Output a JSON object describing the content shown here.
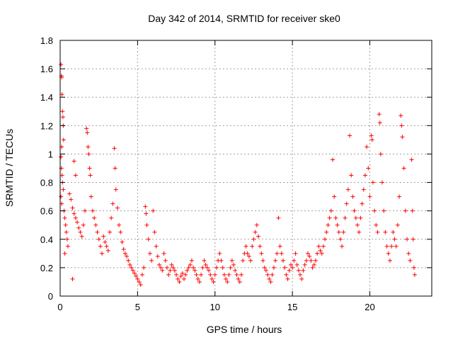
{
  "chart_data": {
    "type": "scatter",
    "title": "Day 342 of 2014, SRMTID for receiver ske0",
    "xlabel": "GPS time / hours",
    "ylabel": "SRMTID / TECUs",
    "xlim": [
      0,
      24
    ],
    "ylim": [
      0,
      1.8
    ],
    "xticks": [
      0,
      5,
      10,
      15,
      20
    ],
    "yticks": [
      0,
      0.2,
      0.4,
      0.6,
      0.8,
      1,
      1.2,
      1.4,
      1.6,
      1.8
    ],
    "xtick_labels": [
      "0",
      "5",
      "10",
      "15",
      "20"
    ],
    "ytick_labels": [
      "0",
      "0.2",
      "0.4",
      "0.6",
      "0.8",
      "1",
      "1.2",
      "1.4",
      "1.6",
      "1.8"
    ],
    "grid": true,
    "marker": "+",
    "color": "#ff0000",
    "series": [
      {
        "name": "SRMTID",
        "points": [
          [
            0.05,
            1.63
          ],
          [
            0.08,
            1.55
          ],
          [
            0.1,
            1.54
          ],
          [
            0.12,
            1.42
          ],
          [
            0.15,
            1.3
          ],
          [
            0.18,
            1.26
          ],
          [
            0.2,
            1.2
          ],
          [
            0.22,
            1.1
          ],
          [
            0.1,
            1.05
          ],
          [
            0.05,
            0.98
          ],
          [
            0.08,
            0.9
          ],
          [
            0.12,
            0.85
          ],
          [
            0.15,
            0.8
          ],
          [
            0.2,
            0.75
          ],
          [
            0.05,
            0.7
          ],
          [
            0.1,
            0.65
          ],
          [
            0.25,
            0.6
          ],
          [
            0.3,
            0.55
          ],
          [
            0.35,
            0.5
          ],
          [
            0.4,
            0.45
          ],
          [
            0.45,
            0.4
          ],
          [
            0.5,
            0.35
          ],
          [
            0.3,
            0.3
          ],
          [
            0.6,
            0.72
          ],
          [
            0.7,
            0.68
          ],
          [
            0.8,
            0.62
          ],
          [
            0.9,
            0.58
          ],
          [
            1.0,
            0.55
          ],
          [
            1.1,
            0.52
          ],
          [
            0.9,
            0.95
          ],
          [
            1.0,
            0.85
          ],
          [
            1.2,
            0.48
          ],
          [
            1.3,
            0.45
          ],
          [
            1.4,
            0.42
          ],
          [
            1.5,
            0.5
          ],
          [
            1.6,
            0.6
          ],
          [
            1.7,
            1.18
          ],
          [
            1.75,
            1.15
          ],
          [
            1.8,
            1.05
          ],
          [
            1.85,
            1.0
          ],
          [
            1.9,
            0.9
          ],
          [
            1.95,
            0.85
          ],
          [
            2.0,
            0.7
          ],
          [
            2.1,
            0.6
          ],
          [
            2.2,
            0.55
          ],
          [
            2.3,
            0.5
          ],
          [
            2.4,
            0.45
          ],
          [
            2.5,
            0.4
          ],
          [
            2.6,
            0.35
          ],
          [
            2.7,
            0.3
          ],
          [
            0.8,
            0.12
          ],
          [
            2.8,
            0.42
          ],
          [
            2.9,
            0.38
          ],
          [
            3.0,
            0.35
          ],
          [
            3.1,
            0.32
          ],
          [
            3.2,
            0.45
          ],
          [
            3.3,
            0.55
          ],
          [
            3.4,
            0.65
          ],
          [
            3.5,
            1.04
          ],
          [
            3.55,
            0.9
          ],
          [
            3.6,
            0.75
          ],
          [
            3.7,
            0.62
          ],
          [
            3.8,
            0.5
          ],
          [
            3.9,
            0.45
          ],
          [
            4.0,
            0.38
          ],
          [
            4.1,
            0.33
          ],
          [
            4.2,
            0.3
          ],
          [
            4.3,
            0.28
          ],
          [
            4.4,
            0.25
          ],
          [
            4.5,
            0.22
          ],
          [
            4.6,
            0.2
          ],
          [
            4.7,
            0.18
          ],
          [
            4.8,
            0.16
          ],
          [
            4.9,
            0.14
          ],
          [
            5.0,
            0.12
          ],
          [
            5.1,
            0.1
          ],
          [
            5.2,
            0.08
          ],
          [
            5.3,
            0.15
          ],
          [
            5.4,
            0.2
          ],
          [
            5.5,
            0.63
          ],
          [
            5.55,
            0.58
          ],
          [
            5.6,
            0.5
          ],
          [
            5.7,
            0.4
          ],
          [
            5.8,
            0.3
          ],
          [
            5.9,
            0.25
          ],
          [
            6.0,
            0.6
          ],
          [
            6.1,
            0.45
          ],
          [
            6.2,
            0.35
          ],
          [
            6.3,
            0.28
          ],
          [
            6.4,
            0.22
          ],
          [
            6.5,
            0.2
          ],
          [
            6.6,
            0.18
          ],
          [
            6.7,
            0.3
          ],
          [
            6.8,
            0.25
          ],
          [
            6.9,
            0.2
          ],
          [
            7.0,
            0.15
          ],
          [
            7.1,
            0.18
          ],
          [
            7.2,
            0.22
          ],
          [
            7.3,
            0.2
          ],
          [
            7.4,
            0.18
          ],
          [
            7.5,
            0.15
          ],
          [
            7.6,
            0.12
          ],
          [
            7.7,
            0.1
          ],
          [
            7.8,
            0.14
          ],
          [
            7.9,
            0.16
          ],
          [
            8.0,
            0.12
          ],
          [
            8.1,
            0.15
          ],
          [
            8.2,
            0.18
          ],
          [
            8.3,
            0.2
          ],
          [
            8.4,
            0.22
          ],
          [
            8.5,
            0.25
          ],
          [
            8.6,
            0.2
          ],
          [
            8.7,
            0.18
          ],
          [
            8.8,
            0.15
          ],
          [
            8.9,
            0.12
          ],
          [
            9.0,
            0.1
          ],
          [
            9.1,
            0.15
          ],
          [
            9.2,
            0.2
          ],
          [
            9.3,
            0.25
          ],
          [
            9.4,
            0.22
          ],
          [
            9.5,
            0.2
          ],
          [
            9.6,
            0.18
          ],
          [
            9.7,
            0.15
          ],
          [
            9.8,
            0.12
          ],
          [
            9.9,
            0.1
          ],
          [
            10.0,
            0.15
          ],
          [
            10.1,
            0.2
          ],
          [
            10.2,
            0.25
          ],
          [
            10.3,
            0.3
          ],
          [
            10.4,
            0.25
          ],
          [
            10.5,
            0.2
          ],
          [
            10.6,
            0.15
          ],
          [
            10.7,
            0.12
          ],
          [
            10.8,
            0.1
          ],
          [
            10.9,
            0.15
          ],
          [
            11.0,
            0.2
          ],
          [
            11.1,
            0.25
          ],
          [
            11.2,
            0.22
          ],
          [
            11.3,
            0.18
          ],
          [
            11.4,
            0.15
          ],
          [
            11.5,
            0.12
          ],
          [
            11.6,
            0.1
          ],
          [
            11.7,
            0.15
          ],
          [
            11.8,
            0.25
          ],
          [
            11.9,
            0.3
          ],
          [
            12.0,
            0.35
          ],
          [
            12.1,
            0.3
          ],
          [
            12.2,
            0.28
          ],
          [
            12.3,
            0.25
          ],
          [
            12.4,
            0.35
          ],
          [
            12.5,
            0.4
          ],
          [
            12.6,
            0.45
          ],
          [
            12.7,
            0.5
          ],
          [
            12.8,
            0.42
          ],
          [
            12.9,
            0.35
          ],
          [
            13.0,
            0.3
          ],
          [
            13.1,
            0.25
          ],
          [
            13.2,
            0.2
          ],
          [
            13.3,
            0.18
          ],
          [
            13.4,
            0.15
          ],
          [
            13.5,
            0.12
          ],
          [
            13.6,
            0.1
          ],
          [
            13.7,
            0.15
          ],
          [
            13.8,
            0.2
          ],
          [
            13.9,
            0.25
          ],
          [
            14.0,
            0.3
          ],
          [
            14.1,
            0.55
          ],
          [
            14.2,
            0.35
          ],
          [
            14.3,
            0.3
          ],
          [
            14.4,
            0.25
          ],
          [
            14.5,
            0.2
          ],
          [
            14.6,
            0.15
          ],
          [
            14.7,
            0.12
          ],
          [
            14.8,
            0.18
          ],
          [
            14.9,
            0.22
          ],
          [
            15.0,
            0.2
          ],
          [
            15.1,
            0.25
          ],
          [
            15.2,
            0.3
          ],
          [
            15.3,
            0.22
          ],
          [
            15.4,
            0.18
          ],
          [
            15.5,
            0.15
          ],
          [
            15.6,
            0.12
          ],
          [
            15.7,
            0.18
          ],
          [
            15.8,
            0.22
          ],
          [
            15.9,
            0.25
          ],
          [
            16.0,
            0.3
          ],
          [
            16.1,
            0.28
          ],
          [
            16.2,
            0.25
          ],
          [
            16.3,
            0.2
          ],
          [
            16.4,
            0.22
          ],
          [
            16.5,
            0.25
          ],
          [
            16.6,
            0.3
          ],
          [
            16.7,
            0.35
          ],
          [
            16.8,
            0.32
          ],
          [
            16.9,
            0.3
          ],
          [
            17.0,
            0.35
          ],
          [
            17.1,
            0.4
          ],
          [
            17.2,
            0.45
          ],
          [
            17.3,
            0.5
          ],
          [
            17.4,
            0.55
          ],
          [
            17.5,
            0.6
          ],
          [
            17.6,
            0.96
          ],
          [
            17.7,
            0.7
          ],
          [
            17.8,
            0.55
          ],
          [
            17.9,
            0.5
          ],
          [
            18.0,
            0.45
          ],
          [
            18.1,
            0.4
          ],
          [
            18.2,
            0.35
          ],
          [
            18.3,
            0.45
          ],
          [
            18.4,
            0.55
          ],
          [
            18.5,
            0.65
          ],
          [
            18.6,
            0.75
          ],
          [
            18.7,
            1.13
          ],
          [
            18.8,
            0.85
          ],
          [
            18.9,
            0.7
          ],
          [
            19.0,
            0.6
          ],
          [
            19.1,
            0.55
          ],
          [
            19.2,
            0.5
          ],
          [
            19.3,
            0.45
          ],
          [
            19.4,
            0.55
          ],
          [
            19.5,
            0.65
          ],
          [
            19.6,
            0.75
          ],
          [
            19.7,
            0.85
          ],
          [
            19.8,
            1.05
          ],
          [
            19.9,
            0.9
          ],
          [
            20.0,
            0.7
          ],
          [
            20.1,
            1.13
          ],
          [
            20.15,
            1.1
          ],
          [
            20.2,
            0.8
          ],
          [
            20.3,
            0.6
          ],
          [
            20.4,
            0.5
          ],
          [
            20.5,
            0.45
          ],
          [
            20.6,
            1.28
          ],
          [
            20.65,
            1.22
          ],
          [
            20.7,
            1.0
          ],
          [
            20.8,
            0.8
          ],
          [
            20.9,
            0.6
          ],
          [
            21.0,
            0.45
          ],
          [
            21.1,
            0.35
          ],
          [
            21.2,
            0.3
          ],
          [
            21.3,
            0.25
          ],
          [
            21.4,
            0.35
          ],
          [
            21.5,
            0.45
          ],
          [
            21.6,
            0.4
          ],
          [
            21.7,
            0.35
          ],
          [
            21.8,
            0.5
          ],
          [
            21.9,
            0.7
          ],
          [
            22.0,
            1.27
          ],
          [
            22.05,
            1.2
          ],
          [
            22.1,
            1.12
          ],
          [
            22.2,
            0.9
          ],
          [
            22.3,
            0.6
          ],
          [
            22.4,
            0.4
          ],
          [
            22.5,
            0.3
          ],
          [
            22.6,
            0.25
          ],
          [
            22.7,
            0.96
          ],
          [
            22.75,
            0.6
          ],
          [
            22.8,
            0.4
          ],
          [
            22.85,
            0.2
          ],
          [
            22.9,
            0.15
          ]
        ]
      }
    ]
  }
}
